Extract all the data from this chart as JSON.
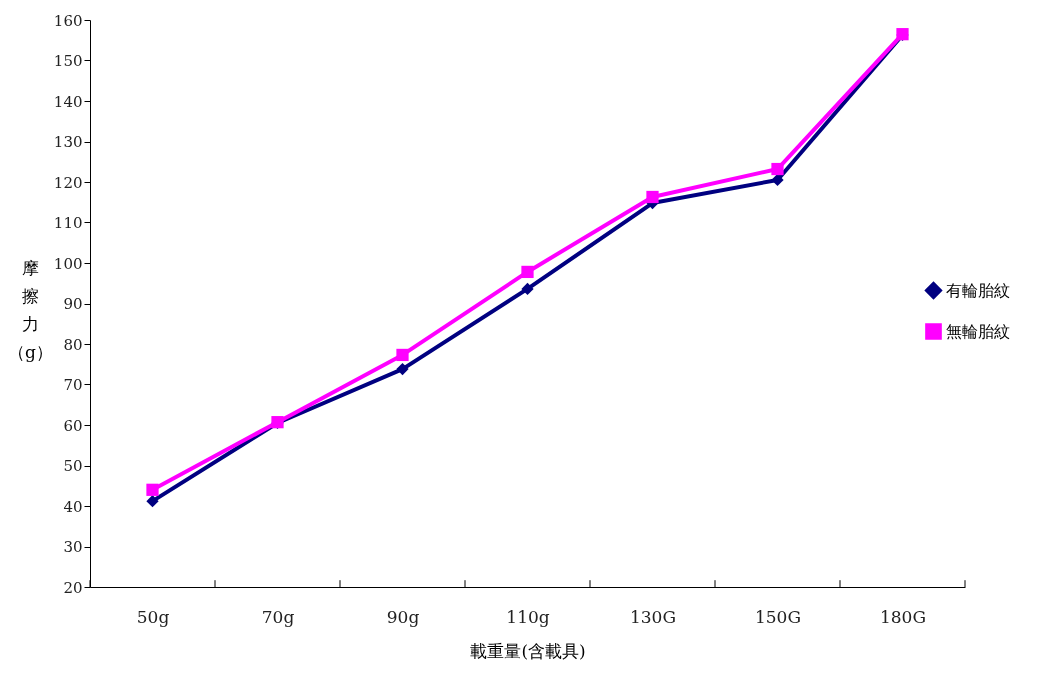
{
  "chart_data": {
    "type": "line",
    "xlabel": "載重量(含載具)",
    "ylabel": "摩擦力（g）",
    "categories": [
      "50g",
      "70g",
      "90g",
      "110g",
      "130G",
      "150G",
      "180G"
    ],
    "series": [
      {
        "name": "有輪胎紋",
        "color": "#000080",
        "marker": "diamond",
        "values": [
          41.2,
          60.5,
          73.8,
          93.6,
          114.8,
          120.5,
          156.3
        ]
      },
      {
        "name": "無輪胎紋",
        "color": "#ff00ff",
        "marker": "square",
        "values": [
          44,
          60.7,
          77.3,
          97.8,
          116.3,
          123.2,
          156.5
        ]
      }
    ],
    "ylim": [
      20,
      160
    ],
    "yticks": [
      20,
      30,
      40,
      50,
      60,
      70,
      80,
      90,
      100,
      110,
      120,
      130,
      140,
      150,
      160
    ],
    "grid": false,
    "legend": "right",
    "line_style": "solid"
  }
}
